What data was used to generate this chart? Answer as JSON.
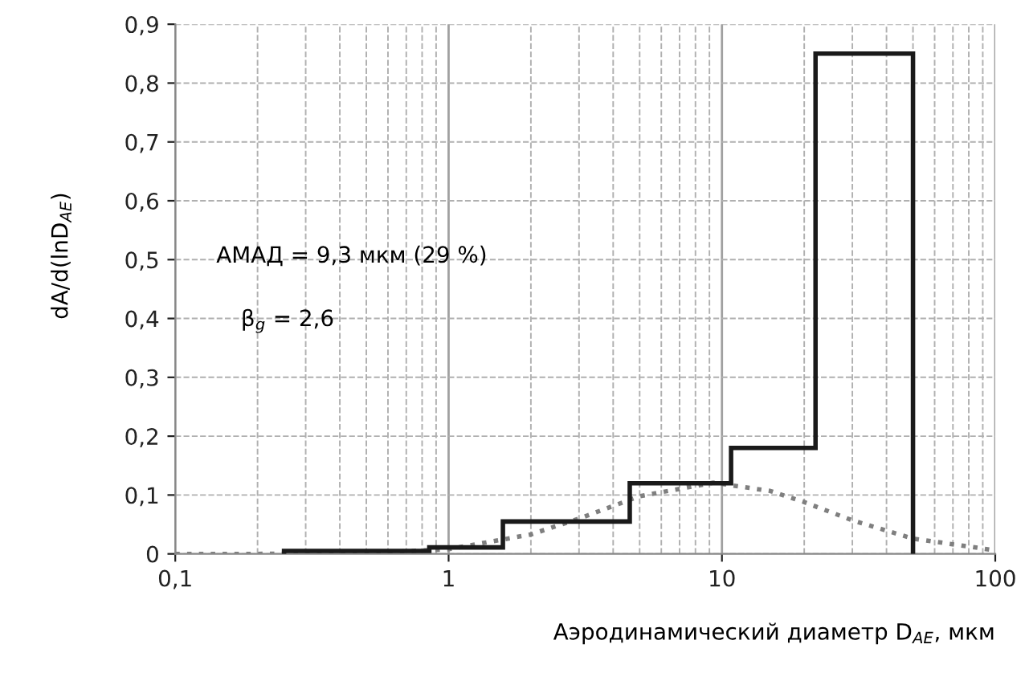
{
  "chart_data": {
    "type": "histogram",
    "xlabel": "Аэродинамический диаметр D$_{AE}$, мкм",
    "ylabel": "dA/d(lnD$_{AE}$)",
    "annotations": [
      "АМАД = 9,3 мкм (29 %)",
      "β$_{g}$ = 2,6"
    ],
    "series": [
      {
        "bins": [
          0.25,
          0.85,
          1.58,
          4.6,
          10.8,
          22,
          50
        ],
        "values": [
          0.005,
          0.011,
          0.055,
          0.12,
          0.18,
          0.85
        ],
        "color": "#1a1a1a"
      },
      {
        "type": "line",
        "x": [
          0.1,
          0.2,
          0.5,
          1,
          2,
          3,
          5,
          9.3,
          15,
          20,
          30,
          50,
          100
        ],
        "values": [
          0,
          0,
          0.001,
          0.008,
          0.033,
          0.06,
          0.098,
          0.121,
          0.107,
          0.088,
          0.057,
          0.026,
          0.006
        ],
        "color": "#7f7f7f",
        "line_style": "dotted"
      }
    ],
    "log": "x",
    "xlim": [
      0.1,
      100
    ],
    "xticks": [
      {
        "value": 0.1,
        "label": "0,1"
      },
      1,
      10,
      100
    ],
    "ylim": [
      0,
      0.9
    ],
    "yticks": [
      0,
      {
        "value": 0.1,
        "label": "0,1"
      },
      {
        "value": 0.2,
        "label": "0,2"
      },
      {
        "value": 0.3,
        "label": "0,3"
      },
      {
        "value": 0.4,
        "label": "0,4"
      },
      {
        "value": 0.5,
        "label": "0,5"
      },
      {
        "value": 0.6,
        "label": "0,6"
      },
      {
        "value": 0.7,
        "label": "0,7"
      },
      {
        "value": 0.8,
        "label": "0,8"
      },
      {
        "value": 0.9,
        "label": "0,9"
      }
    ],
    "grid": true
  }
}
